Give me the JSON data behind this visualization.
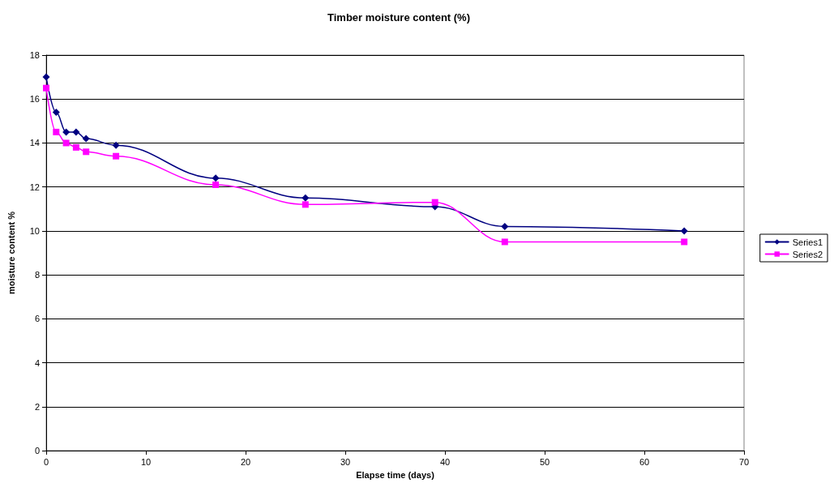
{
  "chart_data": {
    "type": "line",
    "title": "Timber moisture content (%)",
    "xlabel": "Elapse time (days)",
    "ylabel": "moisture content %",
    "x": [
      0,
      1,
      2,
      3,
      4,
      7,
      17,
      26,
      39,
      46,
      64
    ],
    "series": [
      {
        "name": "Series1",
        "color": "#000080",
        "marker": "diamond",
        "values": [
          17,
          15.4,
          14.5,
          14.5,
          14.2,
          13.9,
          12.4,
          11.5,
          11.1,
          10.2,
          10
        ]
      },
      {
        "name": "Series2",
        "color": "#ff00ff",
        "marker": "square",
        "values": [
          16.5,
          14.5,
          14.0,
          13.8,
          13.6,
          13.4,
          12.1,
          11.2,
          11.3,
          9.5,
          9.5
        ]
      }
    ],
    "xlim": [
      0,
      70
    ],
    "xticks": [
      0,
      10,
      20,
      30,
      40,
      50,
      60,
      70
    ],
    "ylim": [
      0,
      18
    ],
    "yticks": [
      0,
      2,
      4,
      6,
      8,
      10,
      12,
      14,
      16,
      18
    ],
    "grid": "y",
    "legend": "right",
    "line_style": "solid"
  }
}
